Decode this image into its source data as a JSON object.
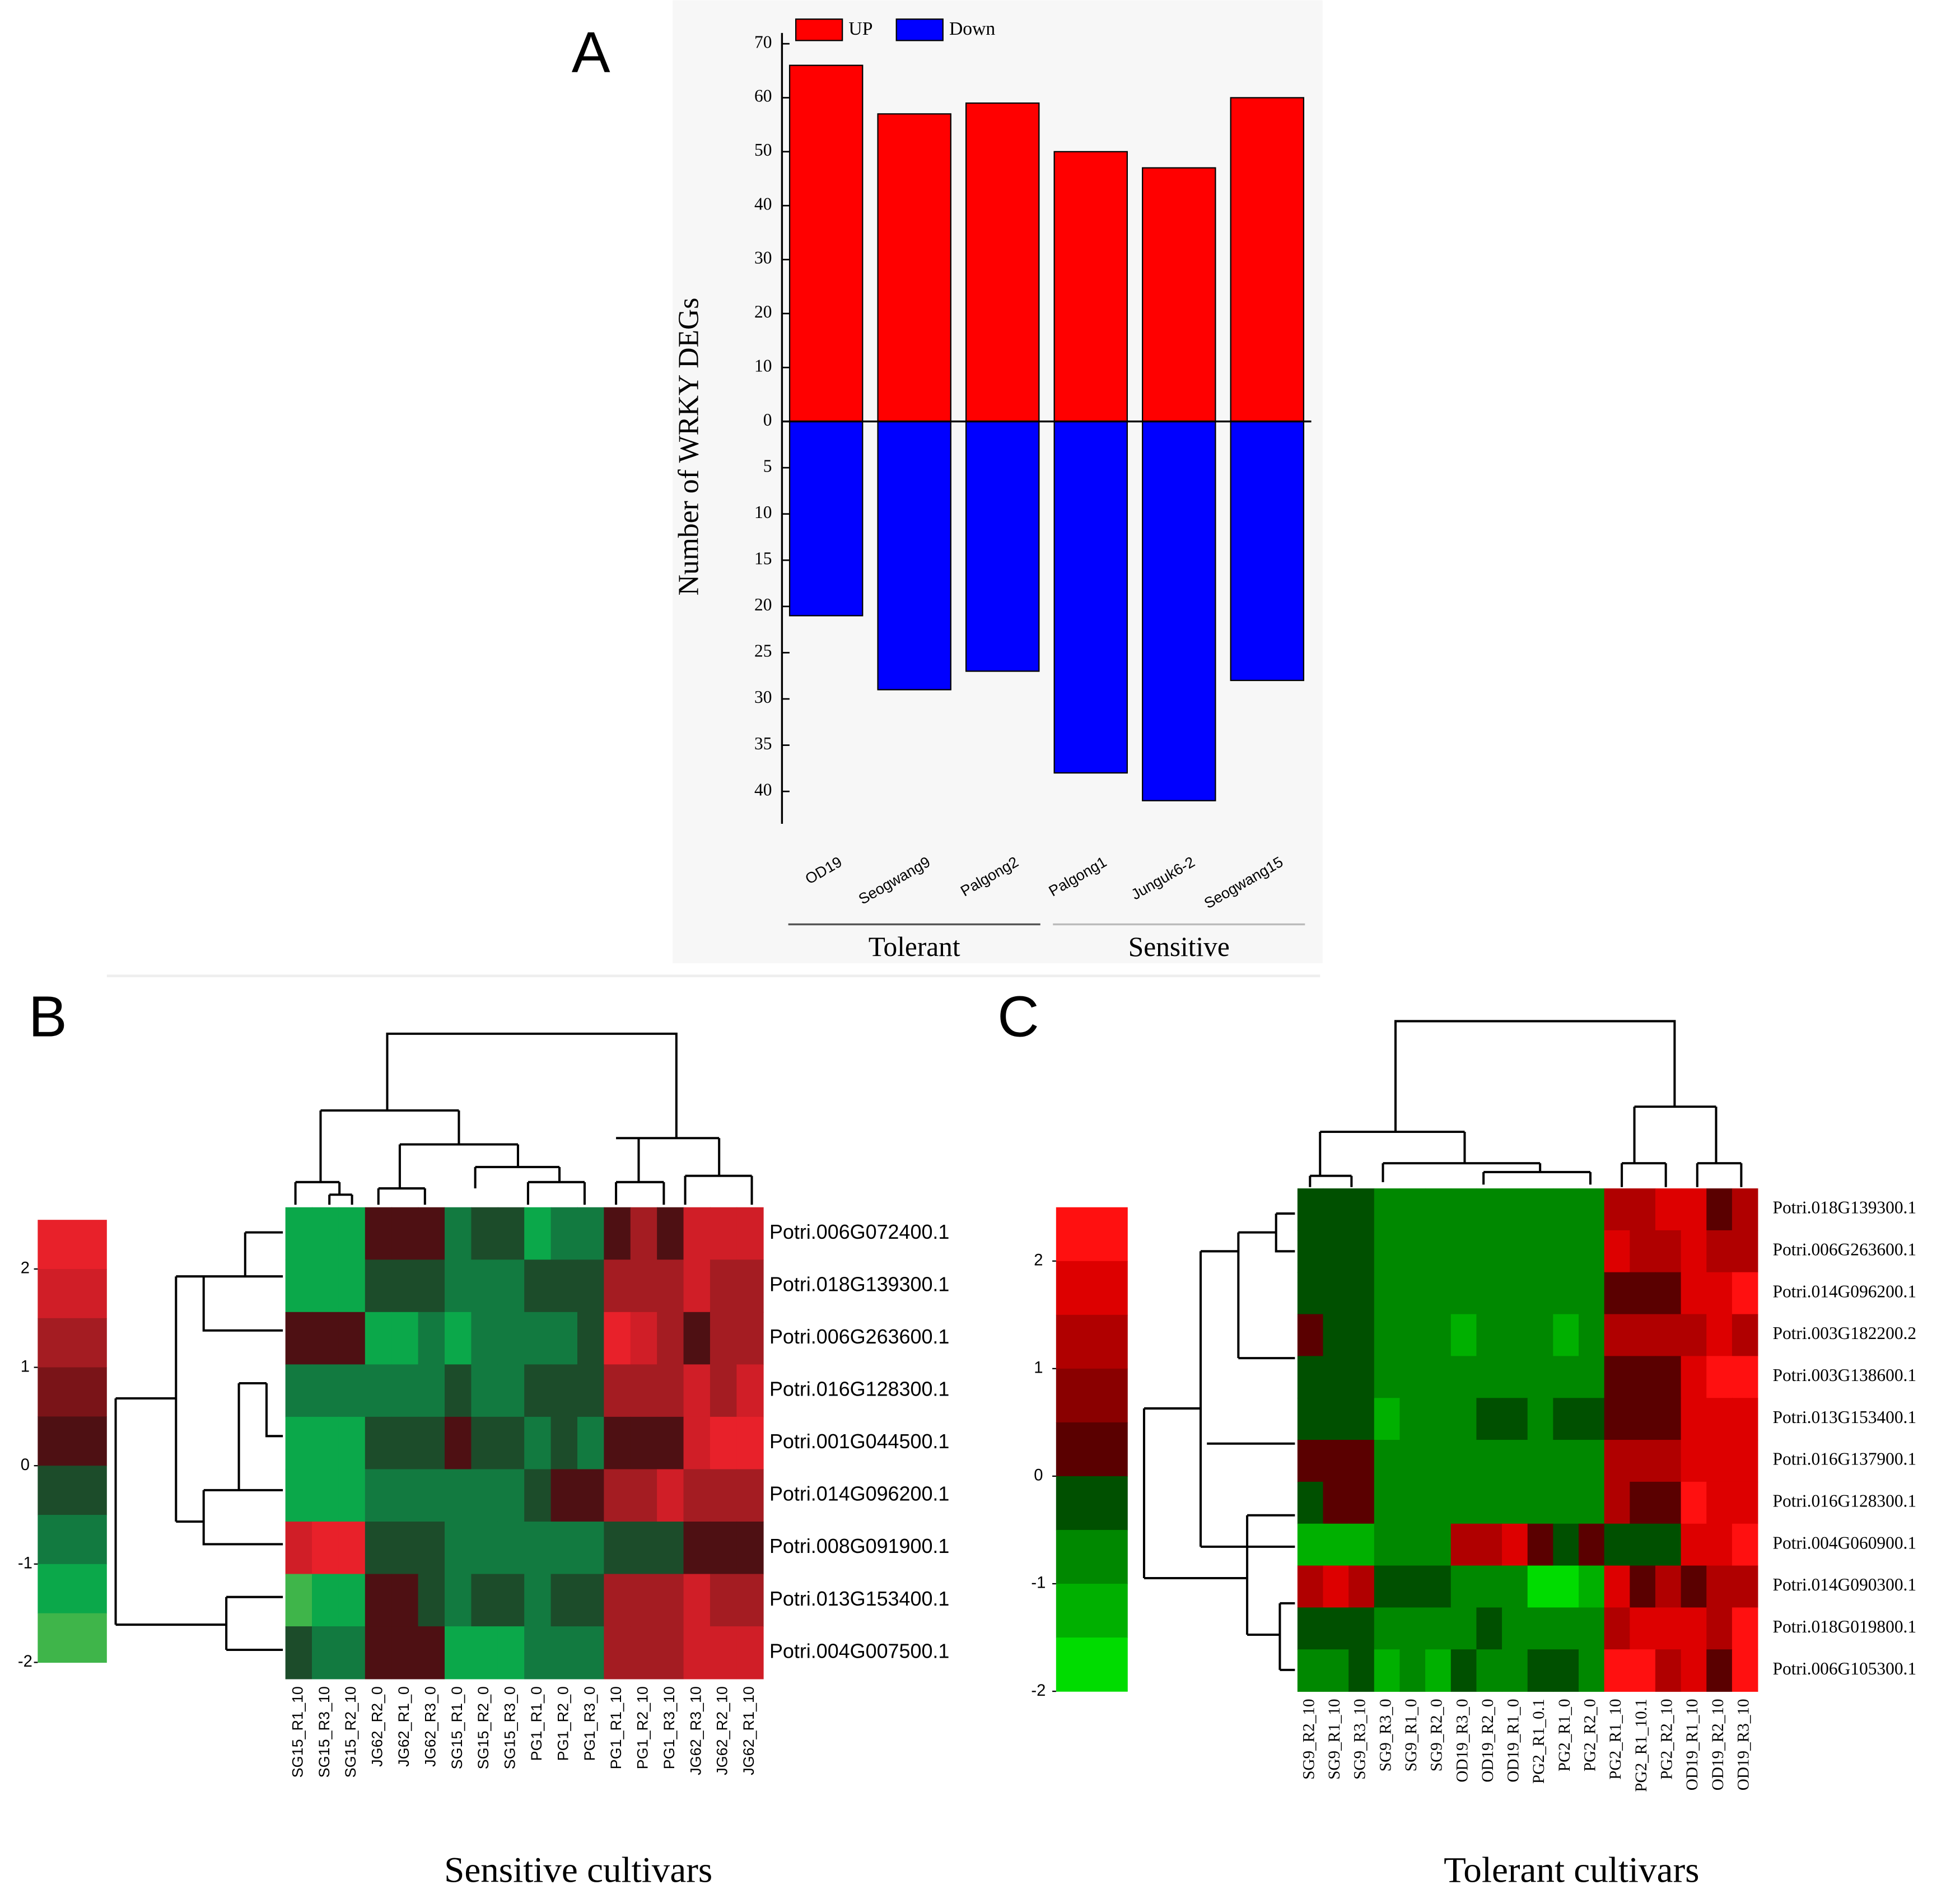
{
  "chart_data": [
    {
      "type": "bar",
      "panel": "A",
      "ylabel": "Number of WRKY DEGs",
      "categories": [
        "OD19",
        "Seogwang9",
        "Palgong2",
        "Palgong1",
        "Junguk6-2",
        "Seogwang15"
      ],
      "groups": [
        {
          "label": "Tolerant",
          "members": [
            0,
            1,
            2
          ]
        },
        {
          "label": "Sensitive",
          "members": [
            3,
            4,
            5
          ]
        }
      ],
      "series": [
        {
          "name": "UP",
          "color": "#ff0000",
          "values": [
            66,
            57,
            59,
            50,
            47,
            60
          ]
        },
        {
          "name": "Down",
          "color": "#0000ff",
          "axis": "y2",
          "values": [
            21,
            29,
            27,
            38,
            41,
            28
          ]
        }
      ],
      "ylim": [
        0,
        72
      ],
      "yticks": [
        0,
        10,
        20,
        30,
        40,
        50,
        60,
        70
      ],
      "y2lim": [
        0,
        43.5
      ],
      "y2ticks": [
        5,
        10,
        15,
        20,
        25,
        30,
        35,
        40
      ]
    },
    {
      "type": "heatmap",
      "panel": "B",
      "title": "Sensitive cultivars",
      "columns": [
        "SG15_R1_10",
        "SG15_R3_10",
        "SG15_R2_10",
        "JG62_R2_0",
        "JG62_R1_0",
        "JG62_R3_0",
        "SG15_R1_0",
        "SG15_R2_0",
        "SG15_R3_0",
        "PG1_R1_0",
        "PG1_R2_0",
        "PG1_R3_0",
        "PG1_R1_10",
        "PG1_R2_10",
        "PG1_R3_10",
        "JG62_R3_10",
        "JG62_R2_10",
        "JG62_R1_10"
      ],
      "rows": [
        "Potri.006G072400.1",
        "Potri.018G139300.1",
        "Potri.006G263600.1",
        "Potri.016G128300.1",
        "Potri.001G044500.1",
        "Potri.014G096200.1",
        "Potri.008G091900.1",
        "Potri.013G153400.1",
        "Potri.004G007500.1"
      ],
      "values": [
        [
          -1.25,
          -1.25,
          -1.25,
          0.25,
          0.25,
          0.25,
          -0.75,
          -0.25,
          -0.25,
          -1.25,
          -0.75,
          -0.75,
          0.25,
          1.25,
          0.25,
          1.75,
          1.75,
          1.75
        ],
        [
          -1.25,
          -1.25,
          -1.25,
          -0.25,
          -0.25,
          -0.25,
          -0.75,
          -0.75,
          -0.75,
          -0.25,
          -0.25,
          -0.25,
          1.25,
          1.25,
          1.25,
          1.75,
          1.25,
          1.25
        ],
        [
          0.25,
          0.25,
          0.25,
          -1.25,
          -1.25,
          -0.75,
          -1.25,
          -0.75,
          -0.75,
          -0.75,
          -0.75,
          -0.25,
          2.25,
          1.75,
          1.25,
          0.25,
          1.25,
          1.25
        ],
        [
          -0.75,
          -0.75,
          -0.75,
          -0.75,
          -0.75,
          -0.75,
          -0.25,
          -0.75,
          -0.75,
          -0.25,
          -0.25,
          -0.25,
          1.25,
          1.25,
          1.25,
          1.75,
          1.25,
          1.75
        ],
        [
          -1.25,
          -1.25,
          -1.25,
          -0.25,
          -0.25,
          -0.25,
          0.25,
          -0.25,
          -0.25,
          -0.75,
          -0.25,
          -0.75,
          0.25,
          0.25,
          0.25,
          1.75,
          2.25,
          2.25
        ],
        [
          -1.25,
          -1.25,
          -1.25,
          -0.75,
          -0.75,
          -0.75,
          -0.75,
          -0.75,
          -0.75,
          -0.25,
          0.25,
          0.25,
          1.25,
          1.25,
          1.75,
          1.25,
          1.25,
          1.25
        ],
        [
          1.75,
          2.25,
          2.25,
          -0.25,
          -0.25,
          -0.25,
          -0.75,
          -0.75,
          -0.75,
          -0.75,
          -0.75,
          -0.75,
          -0.25,
          -0.25,
          -0.25,
          0.25,
          0.25,
          0.25
        ],
        [
          -1.75,
          -1.25,
          -1.25,
          0.25,
          0.25,
          -0.25,
          -0.75,
          -0.25,
          -0.25,
          -0.75,
          -0.25,
          -0.25,
          1.25,
          1.25,
          1.25,
          1.75,
          1.25,
          1.25
        ],
        [
          -0.25,
          -0.75,
          -0.75,
          0.25,
          0.25,
          0.25,
          -1.25,
          -1.25,
          -1.25,
          -0.75,
          -0.75,
          -0.75,
          1.25,
          1.25,
          1.25,
          1.75,
          1.75,
          1.75
        ]
      ],
      "clim": [
        -2,
        2.5
      ],
      "cticks": [
        2,
        1,
        0,
        -1,
        -2
      ],
      "colors": [
        "#e8212a",
        "#d01e27",
        "#a41c22",
        "#7a1418",
        "#4e1013",
        "#1c4c2a",
        "#127a40",
        "#0ba84a",
        "#3fb54a"
      ]
    },
    {
      "type": "heatmap",
      "panel": "C",
      "title": "Tolerant cultivars",
      "columns": [
        "SG9_R2_10",
        "SG9_R1_10",
        "SG9_R3_10",
        "SG9_R3_0",
        "SG9_R1_0",
        "SG9_R2_0",
        "OD19_R3_0",
        "OD19_R2_0",
        "OD19_R1_0",
        "PG2_R1_0.1",
        "PG2_R1_0",
        "PG2_R2_0",
        "PG2_R1_10",
        "PG2_R1_10.1",
        "PG2_R2_10",
        "OD19_R1_10",
        "OD19_R2_10",
        "OD19_R3_10"
      ],
      "rows": [
        "Potri.018G139300.1",
        "Potri.006G263600.1",
        "Potri.014G096200.1",
        "Potri.003G182200.2",
        "Potri.003G138600.1",
        "Potri.013G153400.1",
        "Potri.016G137900.1",
        "Potri.016G128300.1",
        "Potri.004G060900.1",
        "Potri.014G090300.1",
        "Potri.018G019800.1",
        "Potri.006G105300.1"
      ],
      "values": [
        [
          -0.25,
          -0.25,
          -0.25,
          -0.75,
          -0.75,
          -0.75,
          -0.75,
          -0.75,
          -0.75,
          -0.75,
          -0.75,
          -0.75,
          1.25,
          1.25,
          1.75,
          1.75,
          0.25,
          1.25
        ],
        [
          -0.25,
          -0.25,
          -0.25,
          -0.75,
          -0.75,
          -0.75,
          -0.75,
          -0.75,
          -0.75,
          -0.75,
          -0.75,
          -0.75,
          1.75,
          1.25,
          1.25,
          1.75,
          1.25,
          1.25
        ],
        [
          -0.25,
          -0.25,
          -0.25,
          -0.75,
          -0.75,
          -0.75,
          -0.75,
          -0.75,
          -0.75,
          -0.75,
          -0.75,
          -0.75,
          0.25,
          0.25,
          0.25,
          1.75,
          1.75,
          2.25
        ],
        [
          0.25,
          -0.25,
          -0.25,
          -0.75,
          -0.75,
          -0.75,
          -1.25,
          -0.75,
          -0.75,
          -0.75,
          -1.25,
          -0.75,
          1.25,
          1.25,
          1.25,
          1.25,
          1.75,
          1.25
        ],
        [
          -0.25,
          -0.25,
          -0.25,
          -0.75,
          -0.75,
          -0.75,
          -0.75,
          -0.75,
          -0.75,
          -0.75,
          -0.75,
          -0.75,
          0.25,
          0.25,
          0.25,
          1.75,
          2.25,
          2.25
        ],
        [
          -0.25,
          -0.25,
          -0.25,
          -1.25,
          -0.75,
          -0.75,
          -0.75,
          -0.25,
          -0.25,
          -0.75,
          -0.25,
          -0.25,
          0.25,
          0.25,
          0.25,
          1.75,
          1.75,
          1.75
        ],
        [
          0.25,
          0.25,
          0.25,
          -0.75,
          -0.75,
          -0.75,
          -0.75,
          -0.75,
          -0.75,
          -0.75,
          -0.75,
          -0.75,
          1.25,
          1.25,
          1.25,
          1.75,
          1.75,
          1.75
        ],
        [
          -0.25,
          0.25,
          0.25,
          -0.75,
          -0.75,
          -0.75,
          -0.75,
          -0.75,
          -0.75,
          -0.75,
          -0.75,
          -0.75,
          1.25,
          0.25,
          0.25,
          2.25,
          1.75,
          1.75
        ],
        [
          -1.25,
          -1.25,
          -1.25,
          -0.75,
          -0.75,
          -0.75,
          1.25,
          1.25,
          1.75,
          0.25,
          -0.25,
          0.25,
          -0.25,
          -0.25,
          -0.25,
          1.75,
          1.75,
          2.25
        ],
        [
          1.25,
          1.75,
          1.25,
          -0.25,
          -0.25,
          -0.25,
          -0.75,
          -0.75,
          -0.75,
          -1.75,
          -1.75,
          -1.25,
          1.75,
          0.25,
          1.25,
          0.25,
          1.25,
          1.25
        ],
        [
          -0.25,
          -0.25,
          -0.25,
          -0.75,
          -0.75,
          -0.75,
          -0.75,
          -0.25,
          -0.75,
          -0.75,
          -0.75,
          -0.75,
          1.25,
          1.75,
          1.75,
          1.75,
          1.25,
          2.25
        ],
        [
          -0.75,
          -0.75,
          -0.25,
          -1.25,
          -0.75,
          -1.25,
          -0.25,
          -0.75,
          -0.75,
          -0.25,
          -0.25,
          -0.75,
          2.25,
          2.25,
          1.25,
          1.75,
          0.25,
          2.25
        ]
      ],
      "clim": [
        -2,
        2.5
      ],
      "cticks": [
        2,
        1,
        0,
        -1,
        -2
      ],
      "colors": [
        "#ff1010",
        "#dd0000",
        "#b00000",
        "#8a0000",
        "#5a0000",
        "#005000",
        "#008800",
        "#00b000",
        "#00dc00"
      ]
    }
  ]
}
